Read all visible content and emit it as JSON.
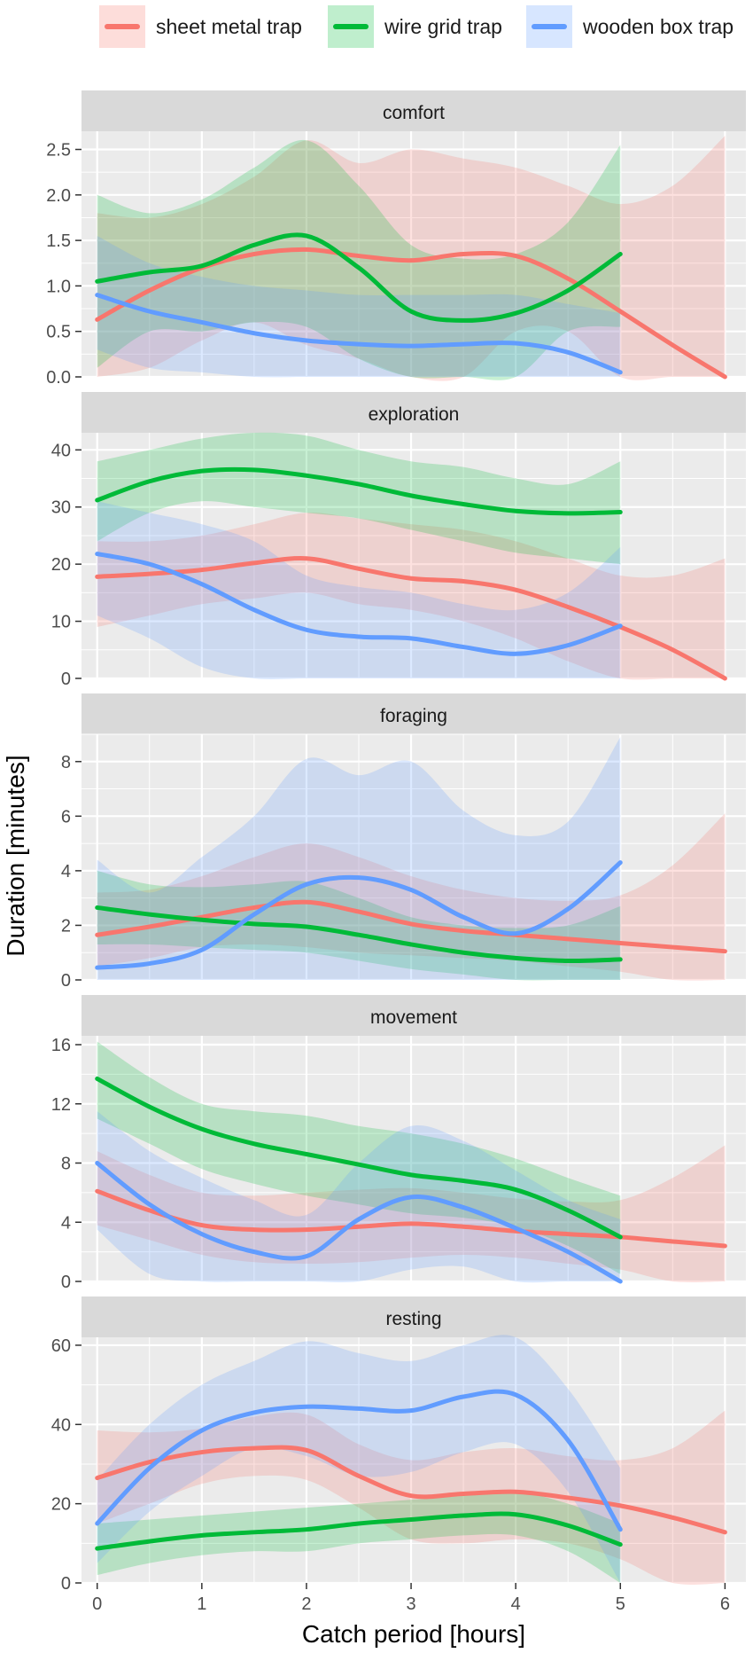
{
  "legend": {
    "items": [
      {
        "label": "sheet metal trap",
        "color": "#F8766D"
      },
      {
        "label": "wire grid trap",
        "color": "#00BA38"
      },
      {
        "label": "wooden box trap",
        "color": "#619CFF"
      }
    ]
  },
  "axes": {
    "xlabel": "Catch period [hours]",
    "ylabel": "Duration [minutes]",
    "xticks": [
      0,
      1,
      2,
      3,
      4,
      5,
      6
    ],
    "xlim": [
      -0.15,
      6.2
    ]
  },
  "chart_data": {
    "type": "line",
    "note": "faceted smoothed lines with confidence ribbons",
    "series_names": [
      "sheet metal trap",
      "wire grid trap",
      "wooden box trap"
    ],
    "panels": [
      {
        "title": "comfort",
        "ylim": [
          0,
          2.7
        ],
        "yticks": [
          "0.0",
          "0.5",
          "1.0",
          "1.5",
          "2.0",
          "2.5"
        ],
        "series": [
          {
            "name": "sheet metal trap",
            "x": [
              0,
              0.5,
              1,
              1.5,
              2,
              2.5,
              3,
              3.5,
              4,
              4.5,
              5,
              5.5,
              6
            ],
            "y": [
              0.63,
              0.95,
              1.2,
              1.35,
              1.4,
              1.33,
              1.28,
              1.35,
              1.33,
              1.08,
              0.72,
              0.35,
              0
            ],
            "lower": [
              0,
              0.1,
              0.4,
              0.6,
              0.35,
              0.2,
              0,
              0,
              0.5,
              0.5,
              0,
              0,
              0
            ],
            "upper": [
              1.8,
              1.75,
              1.9,
              2.2,
              2.6,
              2.35,
              2.5,
              2.4,
              2.3,
              2.1,
              1.9,
              2.1,
              2.65
            ]
          },
          {
            "name": "wire grid trap",
            "x": [
              0,
              0.5,
              1,
              1.5,
              2,
              2.5,
              3,
              3.5,
              4,
              4.5,
              5
            ],
            "y": [
              1.05,
              1.15,
              1.22,
              1.45,
              1.55,
              1.2,
              0.72,
              0.62,
              0.7,
              0.95,
              1.35
            ],
            "lower": [
              0.1,
              0.5,
              0.5,
              0.6,
              0.55,
              0.2,
              0,
              0,
              0,
              0.5,
              0.55
            ],
            "upper": [
              2.0,
              1.8,
              1.95,
              2.3,
              2.6,
              2.1,
              1.45,
              1.3,
              1.35,
              1.7,
              2.55
            ]
          },
          {
            "name": "wooden box trap",
            "x": [
              0,
              0.5,
              1,
              1.5,
              2,
              2.5,
              3,
              3.5,
              4,
              4.5,
              5
            ],
            "y": [
              0.9,
              0.72,
              0.6,
              0.48,
              0.4,
              0.36,
              0.34,
              0.36,
              0.37,
              0.27,
              0.05
            ],
            "lower": [
              0.3,
              0.1,
              0.05,
              0,
              0,
              0,
              0,
              0,
              0,
              0,
              0
            ],
            "upper": [
              1.55,
              1.25,
              1.1,
              1.0,
              0.95,
              0.9,
              0.9,
              0.9,
              0.9,
              0.8,
              0.7
            ]
          }
        ]
      },
      {
        "title": "exploration",
        "ylim": [
          0,
          43
        ],
        "yticks": [
          "0",
          "10",
          "20",
          "30",
          "40"
        ],
        "series": [
          {
            "name": "sheet metal trap",
            "x": [
              0,
              0.5,
              1,
              1.5,
              2,
              2.5,
              3,
              3.5,
              4,
              4.5,
              5,
              5.5,
              6
            ],
            "y": [
              17.8,
              18.3,
              19,
              20.2,
              21,
              19.2,
              17.5,
              17,
              15.5,
              12.5,
              9,
              5,
              0
            ],
            "lower": [
              9,
              11,
              13,
              14,
              15,
              13,
              12,
              10,
              7,
              3,
              0,
              0,
              0
            ],
            "upper": [
              24,
              24,
              25,
              27,
              29,
              28,
              27,
              26,
              24,
              21,
              18,
              18,
              21
            ]
          },
          {
            "name": "wire grid trap",
            "x": [
              0,
              0.5,
              1,
              1.5,
              2,
              2.5,
              3,
              3.5,
              4,
              4.5,
              5
            ],
            "y": [
              31.2,
              34.5,
              36.3,
              36.5,
              35.5,
              34,
              32,
              30.5,
              29.3,
              28.9,
              29.1
            ],
            "lower": [
              24,
              29,
              31,
              30,
              29,
              28,
              26,
              24,
              22,
              21,
              20
            ],
            "upper": [
              38,
              40,
              42,
              43,
              42.5,
              40,
              38,
              37,
              35,
              34,
              38
            ]
          },
          {
            "name": "wooden box trap",
            "x": [
              0,
              0.5,
              1,
              1.5,
              2,
              2.5,
              3,
              3.5,
              4,
              4.5,
              5
            ],
            "y": [
              21.8,
              20,
              16.5,
              12,
              8.5,
              7.3,
              7,
              5.5,
              4.3,
              5.8,
              9.2
            ],
            "lower": [
              11,
              7,
              2,
              0,
              0,
              0,
              0,
              0,
              0,
              0,
              0
            ],
            "upper": [
              31,
              29,
              27,
              24,
              18,
              16,
              15,
              13,
              12,
              15,
              23
            ]
          }
        ]
      },
      {
        "title": "foraging",
        "ylim": [
          0,
          9
        ],
        "yticks": [
          "0",
          "2",
          "4",
          "6",
          "8"
        ],
        "series": [
          {
            "name": "sheet metal trap",
            "x": [
              0,
              0.5,
              1,
              1.5,
              2,
              2.5,
              3,
              3.5,
              4,
              4.5,
              5,
              5.5,
              6
            ],
            "y": [
              1.65,
              1.95,
              2.3,
              2.65,
              2.85,
              2.5,
              2.05,
              1.8,
              1.65,
              1.5,
              1.35,
              1.2,
              1.05
            ],
            "lower": [
              0.5,
              0.8,
              1.2,
              1.3,
              1.2,
              1,
              0.9,
              0.8,
              0.7,
              0.5,
              0.3,
              0,
              0
            ],
            "upper": [
              3.2,
              3.3,
              3.8,
              4.5,
              5.0,
              4.5,
              3.8,
              3.3,
              3.0,
              2.9,
              3.1,
              4.2,
              6.1
            ]
          },
          {
            "name": "wire grid trap",
            "x": [
              0,
              0.5,
              1,
              1.5,
              2,
              2.5,
              3,
              3.5,
              4,
              4.5,
              5
            ],
            "y": [
              2.65,
              2.4,
              2.2,
              2.05,
              1.95,
              1.65,
              1.3,
              1.0,
              0.8,
              0.7,
              0.75
            ],
            "lower": [
              1.3,
              1.3,
              1.2,
              1.1,
              1.0,
              0.7,
              0.4,
              0.2,
              0,
              0,
              0
            ],
            "upper": [
              4.0,
              3.5,
              3.4,
              3.5,
              3.6,
              3.0,
              2.3,
              2.0,
              1.9,
              2.0,
              2.7
            ]
          },
          {
            "name": "wooden box trap",
            "x": [
              0,
              0.5,
              1,
              1.5,
              2,
              2.5,
              3,
              3.5,
              4,
              4.5,
              5
            ],
            "y": [
              0.45,
              0.6,
              1.1,
              2.4,
              3.5,
              3.75,
              3.3,
              2.3,
              1.7,
              2.6,
              4.3
            ],
            "lower": [
              0,
              0,
              0,
              0,
              0,
              0,
              0,
              0,
              0,
              0,
              0
            ],
            "upper": [
              4.4,
              3.2,
              4.5,
              6.0,
              8.1,
              7.5,
              8.0,
              6.2,
              5.3,
              5.8,
              8.9
            ]
          }
        ]
      },
      {
        "title": "movement",
        "ylim": [
          0,
          16.6
        ],
        "yticks": [
          "0",
          "4",
          "8",
          "12",
          "16"
        ],
        "series": [
          {
            "name": "sheet metal trap",
            "x": [
              0,
              0.5,
              1,
              1.5,
              2,
              2.5,
              3,
              3.5,
              4,
              4.5,
              5,
              5.5,
              6
            ],
            "y": [
              6.1,
              4.8,
              3.8,
              3.5,
              3.5,
              3.7,
              3.9,
              3.7,
              3.4,
              3.2,
              3.0,
              2.7,
              2.4
            ],
            "lower": [
              3.8,
              2.8,
              1.8,
              1.3,
              1.2,
              1.3,
              1.6,
              1.8,
              1.6,
              1.2,
              0.8,
              0,
              0
            ],
            "upper": [
              8.8,
              7.2,
              6.0,
              5.8,
              6.0,
              6.2,
              6.3,
              6.0,
              5.6,
              5.4,
              5.5,
              7.0,
              9.2
            ]
          },
          {
            "name": "wire grid trap",
            "x": [
              0,
              0.5,
              1,
              1.5,
              2,
              2.5,
              3,
              3.5,
              4,
              4.5,
              5
            ],
            "y": [
              13.7,
              11.8,
              10.3,
              9.3,
              8.6,
              7.9,
              7.2,
              6.8,
              6.2,
              4.8,
              3.0
            ],
            "lower": [
              11.0,
              9.3,
              7.6,
              6.6,
              5.8,
              5.2,
              4.6,
              4.3,
              3.7,
              2.4,
              0.5
            ],
            "upper": [
              16.2,
              13.8,
              12.0,
              11.5,
              11.2,
              10.5,
              10.0,
              9.3,
              8.3,
              7.0,
              5.8
            ]
          },
          {
            "name": "wooden box trap",
            "x": [
              0,
              0.5,
              1,
              1.5,
              2,
              2.5,
              3,
              3.5,
              4,
              4.5,
              5
            ],
            "y": [
              8.0,
              5.2,
              3.2,
              2.0,
              1.7,
              4.2,
              5.7,
              5.0,
              3.6,
              2.0,
              0
            ],
            "lower": [
              3.5,
              0.5,
              0,
              0,
              0,
              0,
              0.8,
              1.0,
              0,
              0,
              0
            ],
            "upper": [
              11.5,
              8.8,
              7.0,
              5.5,
              4.5,
              8.0,
              10.5,
              9.5,
              7.5,
              5.5,
              4.2
            ]
          }
        ]
      },
      {
        "title": "resting",
        "ylim": [
          0,
          62
        ],
        "yticks": [
          "0",
          "20",
          "40",
          "60"
        ],
        "series": [
          {
            "name": "sheet metal trap",
            "x": [
              0,
              0.5,
              1,
              1.5,
              2,
              2.5,
              3,
              3.5,
              4,
              4.5,
              5,
              5.5,
              6
            ],
            "y": [
              26.5,
              30.5,
              33,
              34,
              33.5,
              27,
              22,
              22.5,
              23,
              21.5,
              19.5,
              16.5,
              12.8
            ],
            "lower": [
              15,
              20,
              25,
              27,
              26,
              19,
              11,
              10,
              11,
              10,
              6,
              0,
              0
            ],
            "upper": [
              38.5,
              38,
              39,
              42,
              42.5,
              35,
              31,
              33,
              34,
              32,
              31,
              34,
              43.5
            ]
          },
          {
            "name": "wire grid trap",
            "x": [
              0,
              0.5,
              1,
              1.5,
              2,
              2.5,
              3,
              3.5,
              4,
              4.5,
              5
            ],
            "y": [
              8.7,
              10.5,
              12,
              12.8,
              13.5,
              15,
              16,
              17,
              17.3,
              14.5,
              9.7
            ],
            "lower": [
              2,
              5,
              7,
              8,
              8,
              10,
              11,
              12,
              12,
              8,
              0
            ],
            "upper": [
              15,
              16,
              17,
              18,
              19,
              20,
              21,
              22,
              23,
              20,
              15
            ]
          },
          {
            "name": "wooden box trap",
            "x": [
              0,
              0.5,
              1,
              1.5,
              2,
              2.5,
              3,
              3.5,
              4,
              4.5,
              5
            ],
            "y": [
              15,
              29,
              38.5,
              43,
              44.5,
              44,
              43.5,
              47,
              47.5,
              36,
              13.5
            ],
            "lower": [
              5,
              18,
              27,
              34,
              32,
              27,
              28,
              33,
              35,
              23,
              0
            ],
            "upper": [
              26,
              40,
              50,
              56,
              61,
              58,
              56,
              60,
              62,
              49,
              29
            ]
          }
        ]
      }
    ]
  }
}
